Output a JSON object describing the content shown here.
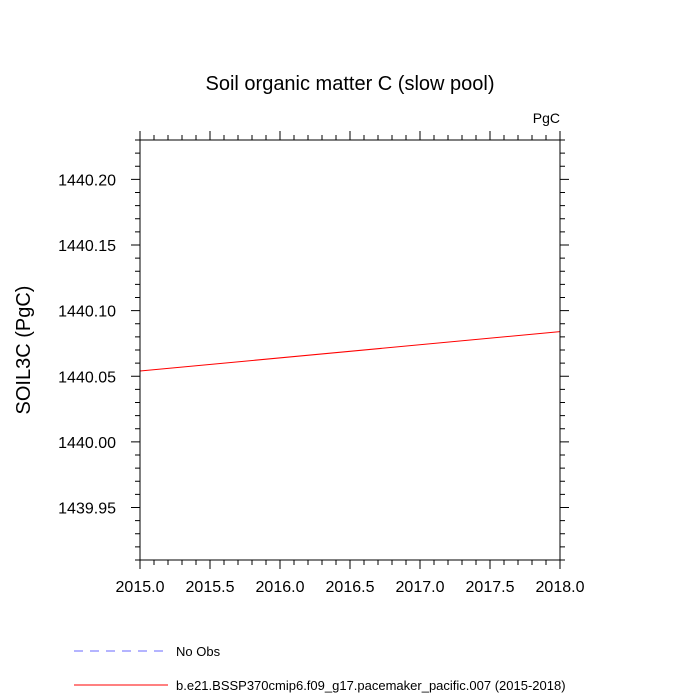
{
  "chart_data": {
    "type": "line",
    "title": "Soil organic matter C (slow pool)",
    "units_label": "PgC",
    "ylabel": "SOIL3C  (PgC)",
    "xlabel": "",
    "xlim": [
      2015.0,
      2018.0
    ],
    "ylim": [
      1439.91,
      1440.23
    ],
    "x_ticks": [
      2015.0,
      2015.5,
      2016.0,
      2016.5,
      2017.0,
      2017.5,
      2018.0
    ],
    "x_tick_labels": [
      "2015.0",
      "2015.5",
      "2016.0",
      "2016.5",
      "2017.0",
      "2017.5",
      "2018.0"
    ],
    "y_ticks": [
      1439.95,
      1440.0,
      1440.05,
      1440.1,
      1440.15,
      1440.2
    ],
    "y_tick_labels": [
      "1439.95",
      "1440.00",
      "1440.05",
      "1440.10",
      "1440.15",
      "1440.20"
    ],
    "grid": false,
    "legend_placement": "bottom-left",
    "series": [
      {
        "name": "No Obs",
        "color": "#6a6aff",
        "dash": "dashed",
        "x": [],
        "y": []
      },
      {
        "name": "b.e21.BSSP370cmip6.f09_g17.pacemaker_pacific.007 (2015-2018)",
        "color": "#ff0000",
        "dash": "solid",
        "x": [
          2015.0,
          2018.0
        ],
        "y": [
          1440.054,
          1440.084
        ]
      }
    ]
  }
}
